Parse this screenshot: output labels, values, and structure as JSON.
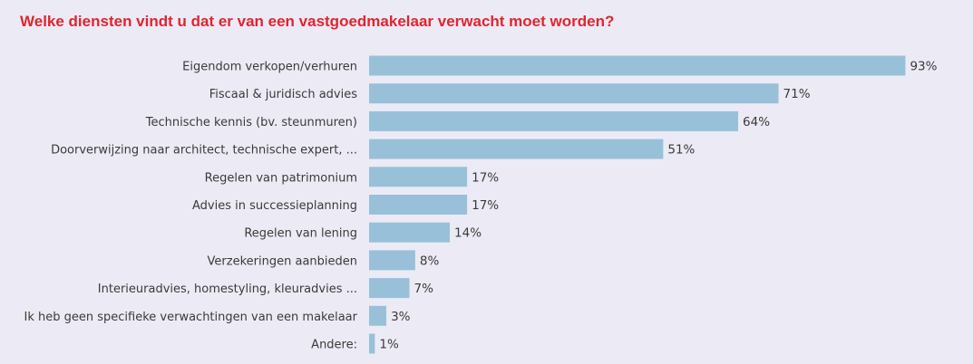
{
  "chart_data": {
    "type": "bar",
    "orientation": "horizontal",
    "title": "Welke diensten vindt u dat er van een vastgoedmakelaar verwacht moet worden?",
    "categories": [
      "Eigendom verkopen/verhuren",
      "Fiscaal & juridisch advies",
      "Technische kennis (bv. steunmuren)",
      "Doorverwijzing naar architect, technische expert, ...",
      "Regelen van patrimonium",
      "Advies in successieplanning",
      "Regelen van lening",
      "Verzekeringen aanbieden",
      "Interieuradvies, homestyling, kleuradvies ...",
      "Ik heb geen specifieke verwachtingen van een makelaar",
      "Andere:"
    ],
    "values": [
      93,
      71,
      64,
      51,
      17,
      17,
      14,
      8,
      7,
      3,
      1
    ],
    "value_labels": [
      "93%",
      "71%",
      "64%",
      "51%",
      "17%",
      "17%",
      "14%",
      "8%",
      "7%",
      "3%",
      "1%"
    ],
    "xlim": [
      0,
      100
    ],
    "grid": false,
    "legend": "none",
    "bar_color": "#98c1d9",
    "title_color": "#e1242f"
  }
}
